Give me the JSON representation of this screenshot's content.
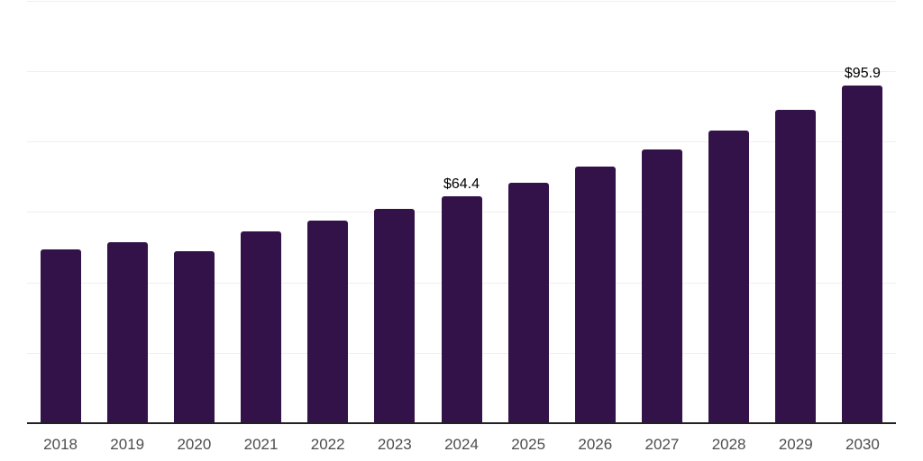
{
  "chart_data": {
    "type": "bar",
    "title": "",
    "xlabel": "",
    "ylabel": "",
    "categories": [
      "2018",
      "2019",
      "2020",
      "2021",
      "2022",
      "2023",
      "2024",
      "2025",
      "2026",
      "2027",
      "2028",
      "2029",
      "2030"
    ],
    "values": [
      49.4,
      51.5,
      48.9,
      54.5,
      57.6,
      61.0,
      64.4,
      68.4,
      72.9,
      77.9,
      83.2,
      89.0,
      95.9
    ],
    "data_labels": [
      "",
      "",
      "",
      "",
      "",
      "",
      "$64.4",
      "",
      "",
      "",
      "",
      "",
      "$95.9"
    ],
    "ylim": [
      0,
      120
    ],
    "gridline_values": [
      20,
      40,
      60,
      80,
      100,
      120
    ],
    "grid": "horizontal",
    "legend": "none",
    "colors": {
      "bar": "#33124a",
      "grid": "#efefef",
      "axis": "#222222",
      "tick_label": "#4d4d4d",
      "data_label": "#000000",
      "background": "#ffffff"
    }
  }
}
